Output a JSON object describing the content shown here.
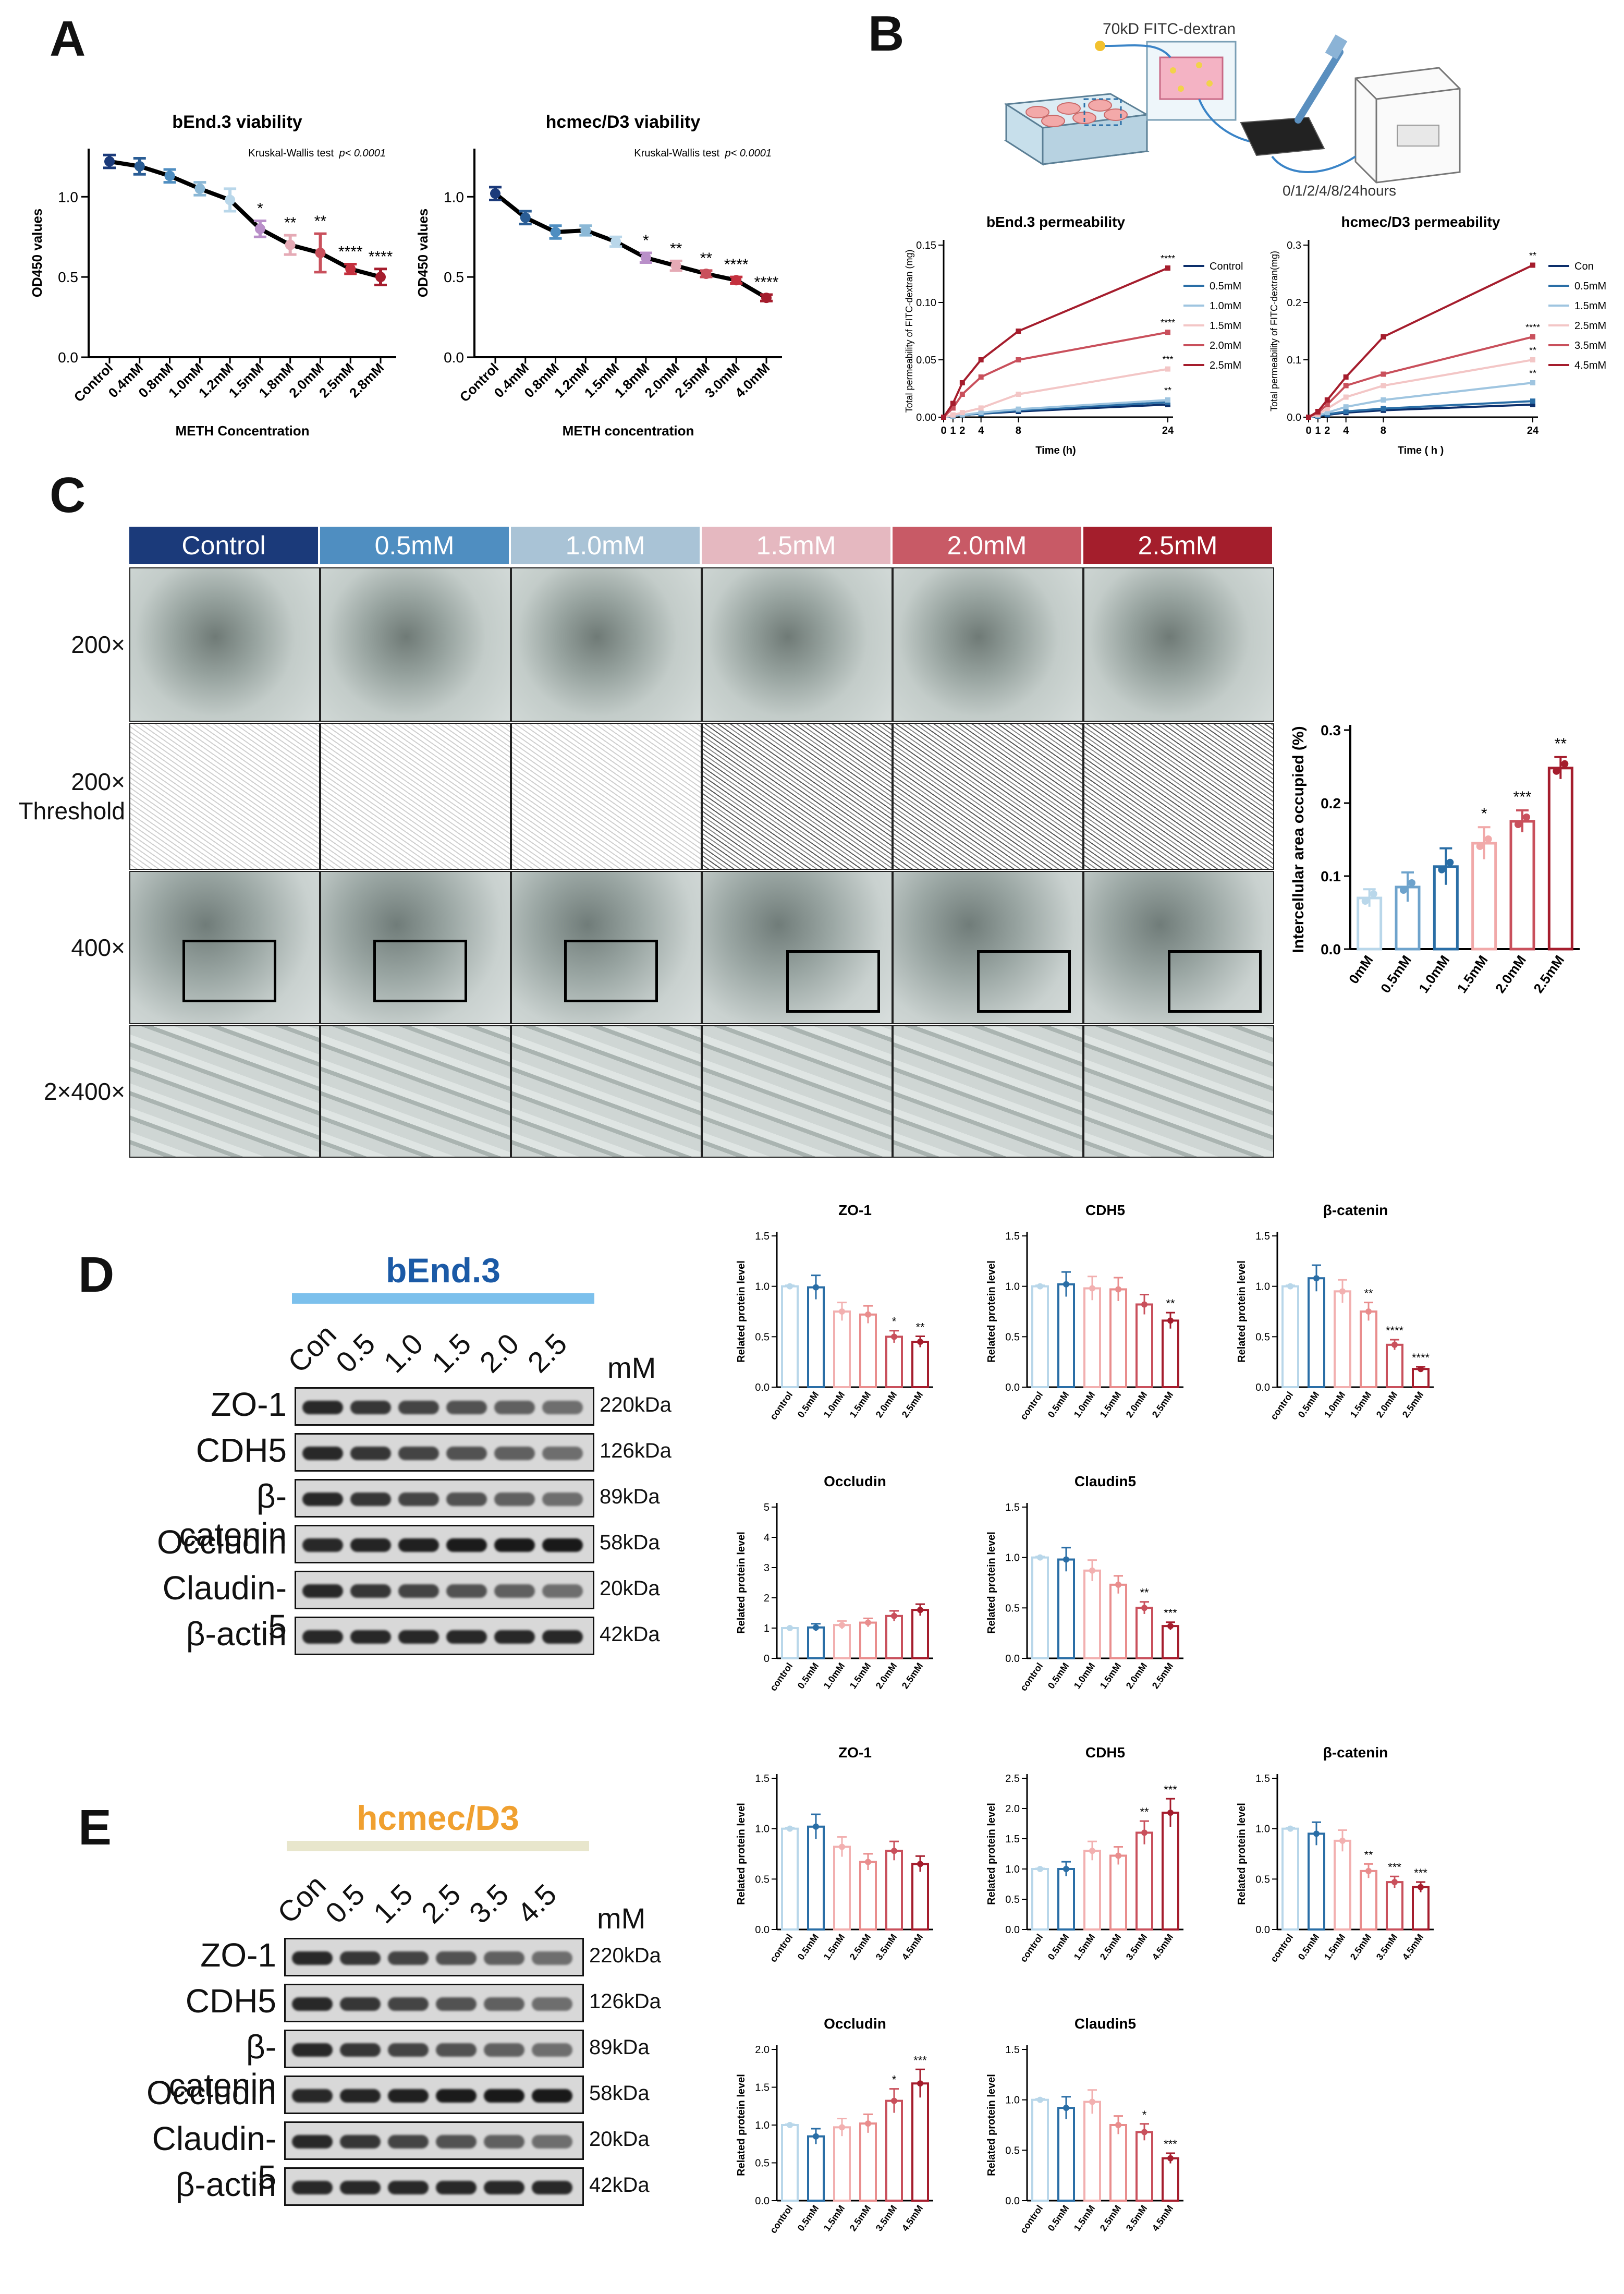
{
  "colors": {
    "c0": "#9fc5e0",
    "c1": "#2a6ea6",
    "c2": "#0c2f6b",
    "p0": "#f3c6c6",
    "p1": "#e98d8d",
    "p2": "#c9505c",
    "p3": "#a51d2d",
    "hdr": [
      "#1b3a7a",
      "#4f8ec1",
      "#a9c3d6",
      "#e5b8c0",
      "#c85a66",
      "#a41e2c"
    ]
  },
  "panels": {
    "A": "A",
    "B": "B",
    "C": "C",
    "D": "D",
    "E": "E"
  },
  "panelA": {
    "left": {
      "title": "bEnd.3 viability",
      "test": "Kruskal-Wallis test",
      "p": "p< 0.0001",
      "ylabel": "OD450 values",
      "xlabel": "METH Concentration",
      "yticks": [
        "0.0",
        "0.5",
        "1.0"
      ],
      "chart_data": {
        "type": "line",
        "categories": [
          "Control",
          "0.4mM",
          "0.8mM",
          "1.0mM",
          "1.2mM",
          "1.5mM",
          "1.8mM",
          "2.0mM",
          "2.5mM",
          "2.8mM"
        ],
        "values": [
          1.22,
          1.19,
          1.13,
          1.05,
          0.98,
          0.8,
          0.7,
          0.65,
          0.55,
          0.5
        ],
        "errors": [
          0.04,
          0.05,
          0.04,
          0.04,
          0.07,
          0.05,
          0.06,
          0.12,
          0.03,
          0.05
        ],
        "stars": [
          "",
          "",
          "",
          "",
          "",
          "*",
          "**",
          "**",
          "****",
          "****"
        ],
        "ylim": [
          0,
          1.3
        ]
      }
    },
    "right": {
      "title": "hcmec/D3 viability",
      "test": "Kruskal-Wallis test",
      "p": "p< 0.0001",
      "ylabel": "OD450 values",
      "xlabel": "METH concentration",
      "yticks": [
        "0.0",
        "0.5",
        "1.0"
      ],
      "chart_data": {
        "type": "line",
        "categories": [
          "Control",
          "0.4mM",
          "0.8mM",
          "1.2mM",
          "1.5mM",
          "1.8mM",
          "2.0mM",
          "2.5mM",
          "3.0mM",
          "4.0mM"
        ],
        "values": [
          1.02,
          0.87,
          0.78,
          0.79,
          0.72,
          0.62,
          0.57,
          0.52,
          0.48,
          0.37
        ],
        "errors": [
          0.04,
          0.04,
          0.04,
          0.03,
          0.03,
          0.03,
          0.03,
          0.02,
          0.02,
          0.02
        ],
        "stars": [
          "",
          "",
          "",
          "",
          "",
          "*",
          "**",
          "**",
          "****",
          "****"
        ],
        "ylim": [
          0,
          1.3
        ]
      }
    }
  },
  "panelB": {
    "schematic": {
      "reagent": "70kD FITC-dextran",
      "timepoints": "0/1/2/4/8/24hours"
    },
    "left": {
      "title": "bEnd.3 permeability",
      "ylabel": "Total permeability of FITC-dextran (mg)",
      "xlabel": "Time (h)",
      "yticks": [
        "0.00",
        "0.05",
        "0.10",
        "0.15"
      ],
      "xticks": [
        "0",
        "1",
        "2",
        "4",
        "8",
        "24"
      ],
      "chart_data": {
        "type": "line",
        "x": [
          0,
          1,
          2,
          4,
          8,
          24
        ],
        "ylim": [
          0,
          0.15
        ],
        "series": [
          {
            "name": "Control",
            "color": "#0c2f6b",
            "values": [
              0,
              0.001,
              0.002,
              0.003,
              0.005,
              0.011
            ]
          },
          {
            "name": "0.5mM",
            "color": "#2a6ea6",
            "values": [
              0,
              0.001,
              0.002,
              0.003,
              0.006,
              0.013
            ]
          },
          {
            "name": "1.0mM",
            "color": "#9fc5e0",
            "values": [
              0,
              0.001,
              0.002,
              0.004,
              0.007,
              0.015
            ]
          },
          {
            "name": "1.5mM",
            "color": "#f3c6c6",
            "values": [
              0,
              0.002,
              0.004,
              0.008,
              0.02,
              0.042
            ]
          },
          {
            "name": "2.0mM",
            "color": "#c9505c",
            "values": [
              0,
              0.008,
              0.02,
              0.035,
              0.05,
              0.074
            ]
          },
          {
            "name": "2.5mM",
            "color": "#a51d2d",
            "values": [
              0,
              0.012,
              0.03,
              0.05,
              0.075,
              0.13
            ]
          }
        ],
        "stars": [
          "****",
          "****",
          "***",
          "**"
        ]
      }
    },
    "right": {
      "title": "hcmec/D3 permeability",
      "ylabel": "Total permeability of FITC-dextran(mg)",
      "xlabel": "Time ( h )",
      "yticks": [
        "0.0",
        "0.1",
        "0.2",
        "0.3"
      ],
      "xticks": [
        "0",
        "1",
        "2",
        "4",
        "8",
        "24"
      ],
      "chart_data": {
        "type": "line",
        "x": [
          0,
          1,
          2,
          4,
          8,
          24
        ],
        "ylim": [
          0,
          0.3
        ],
        "series": [
          {
            "name": "Con",
            "color": "#0c2f6b",
            "values": [
              0,
              0.002,
              0.004,
              0.008,
              0.012,
              0.022
            ]
          },
          {
            "name": "0.5mM",
            "color": "#2a6ea6",
            "values": [
              0,
              0.002,
              0.005,
              0.01,
              0.015,
              0.028
            ]
          },
          {
            "name": "1.5mM",
            "color": "#9fc5e0",
            "values": [
              0,
              0.003,
              0.008,
              0.018,
              0.03,
              0.06
            ]
          },
          {
            "name": "2.5mM",
            "color": "#f3c6c6",
            "values": [
              0,
              0.005,
              0.015,
              0.035,
              0.055,
              0.1
            ]
          },
          {
            "name": "3.5mM",
            "color": "#c9505c",
            "values": [
              0,
              0.008,
              0.022,
              0.055,
              0.075,
              0.14
            ]
          },
          {
            "name": "4.5mM",
            "color": "#a51d2d",
            "values": [
              0,
              0.01,
              0.03,
              0.07,
              0.14,
              0.265
            ]
          }
        ],
        "stars": [
          "**",
          "****",
          "**",
          "**"
        ]
      }
    }
  },
  "panelC": {
    "headers": [
      "Control",
      "0.5mM",
      "1.0mM",
      "1.5mM",
      "2.0mM",
      "2.5mM"
    ],
    "rows": [
      "200×",
      "200× Threshold",
      "400×",
      "2×400×"
    ],
    "bar": {
      "ylabel": "Intercellular area occupied (%)",
      "yticks": [
        "0.0",
        "0.1",
        "0.2",
        "0.3"
      ],
      "chart_data": {
        "type": "bar",
        "categories": [
          "0mM",
          "0.5mM",
          "1.0mM",
          "1.5mM",
          "2.0mM",
          "2.5mM"
        ],
        "values": [
          0.07,
          0.085,
          0.113,
          0.145,
          0.175,
          0.248
        ],
        "errors": [
          0.012,
          0.02,
          0.025,
          0.022,
          0.015,
          0.015
        ],
        "stars": [
          "",
          "",
          "",
          "*",
          "***",
          "**"
        ],
        "ylim": [
          0,
          0.3
        ]
      }
    }
  },
  "panelD": {
    "cell": "bEnd.3",
    "unit": "mM",
    "lanes": [
      "Con",
      "0.5",
      "1.0",
      "1.5",
      "2.0",
      "2.5"
    ],
    "bands": [
      "ZO-1",
      "CDH5",
      "β-catenin",
      "Occludin",
      "Claudin-5",
      "β-actin"
    ],
    "kda": [
      "220kDa",
      "126kDa",
      "89kDa",
      "58kDa",
      "20kDa",
      "42kDa"
    ],
    "ylabel": "Related protein level",
    "charts": [
      {
        "title": "ZO-1",
        "type": "bar",
        "categories": [
          "control",
          "0.5mM",
          "1.0mM",
          "1.5mM",
          "2.0mM",
          "2.5mM"
        ],
        "values": [
          1.0,
          0.99,
          0.75,
          0.72,
          0.5,
          0.45
        ],
        "stars": [
          "",
          "",
          "",
          "",
          "*",
          "**"
        ],
        "ylim": [
          0,
          1.5
        ],
        "yticks": [
          "0.0",
          "0.5",
          "1.0",
          "1.5"
        ]
      },
      {
        "title": "CDH5",
        "type": "bar",
        "categories": [
          "control",
          "0.5mM",
          "1.0mM",
          "1.5mM",
          "2.0mM",
          "2.5mM"
        ],
        "values": [
          1.0,
          1.02,
          0.98,
          0.97,
          0.82,
          0.66
        ],
        "stars": [
          "",
          "",
          "",
          "",
          "",
          "**"
        ],
        "ylim": [
          0,
          1.5
        ],
        "yticks": [
          "0.0",
          "0.5",
          "1.0",
          "1.5"
        ]
      },
      {
        "title": "β-catenin",
        "type": "bar",
        "categories": [
          "control",
          "0.5mM",
          "1.0mM",
          "1.5mM",
          "2.0mM",
          "2.5mM"
        ],
        "values": [
          1.0,
          1.08,
          0.95,
          0.75,
          0.42,
          0.18
        ],
        "stars": [
          "",
          "",
          "",
          "**",
          "****",
          "****"
        ],
        "ylim": [
          0,
          1.5
        ],
        "yticks": [
          "0.0",
          "0.5",
          "1.0",
          "1.5"
        ]
      },
      {
        "title": "Occludin",
        "type": "bar",
        "categories": [
          "control",
          "0.5mM",
          "1.0mM",
          "1.5mM",
          "2.0mM",
          "2.5mM"
        ],
        "values": [
          1.0,
          1.02,
          1.1,
          1.18,
          1.4,
          1.6
        ],
        "stars": [
          "",
          "",
          "",
          "",
          "",
          ""
        ],
        "ylim": [
          0,
          5
        ],
        "yticks": [
          "0",
          "1",
          "2",
          "3",
          "4",
          "5"
        ]
      },
      {
        "title": "Claudin5",
        "type": "bar",
        "categories": [
          "control",
          "0.5mM",
          "1.0mM",
          "1.5mM",
          "2.0mM",
          "2.5mM"
        ],
        "values": [
          1.0,
          0.98,
          0.87,
          0.73,
          0.5,
          0.32
        ],
        "stars": [
          "",
          "",
          "",
          "",
          "**",
          "***"
        ],
        "ylim": [
          0,
          1.5
        ],
        "yticks": [
          "0.0",
          "0.5",
          "1.0",
          "1.5"
        ]
      }
    ]
  },
  "panelE": {
    "cell": "hcmec/D3",
    "unit": "mM",
    "lanes": [
      "Con",
      "0.5",
      "1.5",
      "2.5",
      "3.5",
      "4.5"
    ],
    "bands": [
      "ZO-1",
      "CDH5",
      "β-catenin",
      "Occludin",
      "Claudin-5",
      "β-actin"
    ],
    "kda": [
      "220kDa",
      "126kDa",
      "89kDa",
      "58kDa",
      "20kDa",
      "42kDa"
    ],
    "ylabel": "Related protein level",
    "charts": [
      {
        "title": "ZO-1",
        "type": "bar",
        "categories": [
          "control",
          "0.5mM",
          "1.5mM",
          "2.5mM",
          "3.5mM",
          "4.5mM"
        ],
        "values": [
          1.0,
          1.02,
          0.82,
          0.67,
          0.78,
          0.65
        ],
        "stars": [
          "",
          "",
          "",
          "",
          "",
          ""
        ],
        "ylim": [
          0,
          1.5
        ],
        "yticks": [
          "0.0",
          "0.5",
          "1.0",
          "1.5"
        ]
      },
      {
        "title": "CDH5",
        "type": "bar",
        "categories": [
          "control",
          "0.5mM",
          "1.5mM",
          "2.5mM",
          "3.5mM",
          "4.5mM"
        ],
        "values": [
          1.0,
          1.0,
          1.3,
          1.22,
          1.6,
          1.93
        ],
        "stars": [
          "",
          "",
          "",
          "",
          "**",
          "***"
        ],
        "ylim": [
          0,
          2.5
        ],
        "yticks": [
          "0.0",
          "0.5",
          "1.0",
          "1.5",
          "2.0",
          "2.5"
        ]
      },
      {
        "title": "β-catenin",
        "type": "bar",
        "categories": [
          "control",
          "0.5mM",
          "1.5mM",
          "2.5mM",
          "3.5mM",
          "4.5mM"
        ],
        "values": [
          1.0,
          0.95,
          0.88,
          0.58,
          0.47,
          0.42
        ],
        "stars": [
          "",
          "",
          "",
          "**",
          "***",
          "***"
        ],
        "ylim": [
          0,
          1.5
        ],
        "yticks": [
          "0.0",
          "0.5",
          "1.0",
          "1.5"
        ]
      },
      {
        "title": "Occludin",
        "type": "bar",
        "categories": [
          "control",
          "0.5mM",
          "1.5mM",
          "2.5mM",
          "3.5mM",
          "4.5mM"
        ],
        "values": [
          1.0,
          0.85,
          0.97,
          1.02,
          1.32,
          1.55
        ],
        "stars": [
          "",
          "",
          "",
          "",
          "*",
          "***"
        ],
        "ylim": [
          0,
          2.0
        ],
        "yticks": [
          "0.0",
          "0.5",
          "1.0",
          "1.5",
          "2.0"
        ]
      },
      {
        "title": "Claudin5",
        "type": "bar",
        "categories": [
          "control",
          "0.5mM",
          "1.5mM",
          "2.5mM",
          "3.5mM",
          "4.5mM"
        ],
        "values": [
          1.0,
          0.92,
          0.98,
          0.75,
          0.68,
          0.42
        ],
        "stars": [
          "",
          "",
          "",
          "",
          "*",
          "***"
        ],
        "ylim": [
          0,
          1.5
        ],
        "yticks": [
          "0.0",
          "0.5",
          "1.0",
          "1.5"
        ]
      }
    ]
  }
}
